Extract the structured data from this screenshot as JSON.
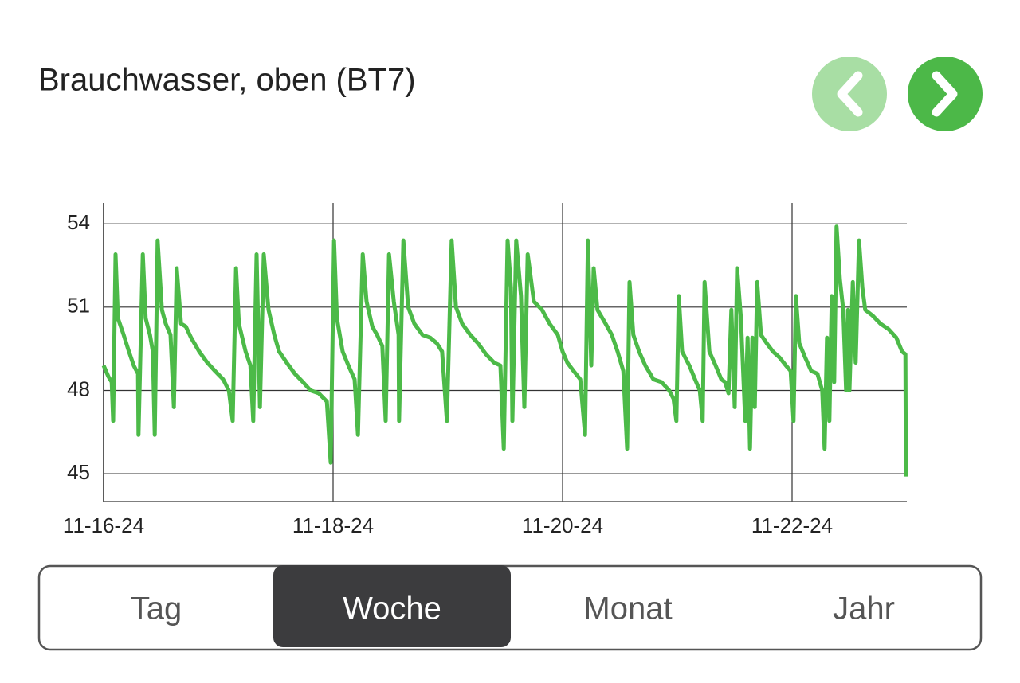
{
  "header": {
    "title": "Brauchwasser, oben (BT7)"
  },
  "chart_data": {
    "type": "line",
    "x": [
      0,
      1,
      1.7,
      2,
      2.5,
      3,
      4.2,
      5.3,
      6.3,
      7.2,
      7.3,
      8.2,
      8.8,
      9.7,
      10.3,
      10.7,
      11.3,
      12.2,
      13,
      14,
      14.7,
      15.3,
      16.2,
      17.2,
      18.3,
      20,
      21.7,
      23.3,
      25,
      26.2,
      27,
      27.7,
      28.3,
      29.7,
      30.7,
      31.3,
      32,
      32.7,
      33.5,
      34.5,
      35.7,
      36.7,
      38.3,
      40,
      41.7,
      43.3,
      45,
      46.7,
      47.5,
      48.2,
      48.8,
      50,
      51.2,
      52.5,
      53.2,
      54.2,
      55,
      56.2,
      57.2,
      58.3,
      59,
      59.7,
      60.7,
      61.7,
      61.8,
      62.7,
      63.7,
      65,
      66.7,
      68.3,
      69.7,
      70.8,
      71.8,
      72.8,
      73.7,
      75,
      76.7,
      78.3,
      80,
      81.7,
      83,
      83.7,
      84.5,
      85.2,
      85.5,
      86.3,
      87.3,
      88,
      88.7,
      90,
      91.7,
      93.3,
      95,
      96,
      97,
      98.3,
      99.7,
      100.7,
      101.3,
      102,
      102.5,
      103.3,
      105,
      106.3,
      107.5,
      108.7,
      109.5,
      110,
      110.8,
      112,
      113.3,
      115,
      116.7,
      118.3,
      119.2,
      119.8,
      120.3,
      121,
      122.5,
      123.7,
      124.7,
      125.3,
      125.7,
      126.7,
      128,
      129.2,
      130,
      130.7,
      131.3,
      132,
      132.5,
      133.3,
      134.2,
      134.7,
      135.2,
      135.7,
      136.2,
      136.7,
      137.5,
      138.7,
      140,
      141.3,
      142.7,
      143.7,
      144.3,
      144.8,
      145.5,
      146.7,
      148,
      149.3,
      150.3,
      150.8,
      151.3,
      151.8,
      152.3,
      152.8,
      153.3,
      154,
      154.7,
      155.3,
      155.7,
      156,
      156.7,
      157.3,
      158,
      158.7,
      159.3,
      160.8,
      162.5,
      164.2,
      165.8,
      167,
      167.7,
      167.8
    ],
    "series": [
      {
        "color": "#4cba48",
        "values": [
          48.9,
          48.5,
          48.3,
          46.9,
          52.9,
          50.6,
          50.0,
          49.4,
          48.9,
          48.6,
          46.4,
          52.9,
          50.6,
          50.0,
          49.4,
          46.4,
          53.4,
          50.9,
          50.4,
          50.0,
          47.4,
          52.4,
          50.4,
          50.3,
          49.9,
          49.4,
          49.0,
          48.7,
          48.4,
          48.0,
          46.9,
          52.4,
          50.4,
          49.4,
          48.9,
          46.9,
          52.9,
          47.4,
          52.9,
          50.9,
          50.0,
          49.4,
          49.0,
          48.6,
          48.3,
          48.0,
          47.9,
          47.6,
          45.4,
          53.4,
          50.6,
          49.4,
          48.9,
          48.4,
          46.4,
          52.9,
          51.2,
          50.3,
          50.0,
          49.6,
          46.9,
          52.9,
          51.2,
          50.0,
          46.9,
          53.4,
          51.0,
          50.4,
          50.0,
          49.9,
          49.7,
          49.4,
          46.9,
          53.4,
          51.0,
          50.4,
          50.0,
          49.7,
          49.3,
          49.0,
          48.9,
          45.9,
          53.4,
          51.7,
          46.9,
          53.4,
          51.4,
          47.4,
          52.9,
          51.2,
          50.9,
          50.4,
          50.0,
          49.4,
          49.0,
          48.7,
          48.4,
          46.4,
          53.4,
          48.9,
          52.4,
          50.9,
          50.4,
          50.0,
          49.4,
          48.7,
          45.9,
          51.9,
          50.0,
          49.4,
          48.9,
          48.4,
          48.3,
          48.0,
          47.7,
          46.9,
          51.4,
          49.4,
          48.9,
          48.4,
          48.0,
          46.9,
          51.9,
          49.4,
          48.9,
          48.4,
          48.3,
          47.9,
          50.9,
          47.4,
          52.4,
          50.6,
          46.9,
          49.9,
          45.9,
          49.9,
          47.4,
          51.9,
          50.0,
          49.7,
          49.4,
          49.2,
          48.9,
          48.7,
          46.9,
          51.4,
          49.7,
          49.2,
          48.7,
          48.6,
          48.0,
          45.9,
          49.9,
          46.9,
          51.4,
          48.3,
          53.9,
          52.0,
          50.9,
          48.0,
          50.9,
          48.0,
          51.9,
          49.0,
          53.4,
          51.7,
          50.9,
          50.7,
          50.4,
          50.2,
          49.9,
          49.4,
          49.3,
          44.9
        ]
      }
    ],
    "xlim": [
      0,
      168
    ],
    "xticks": [
      {
        "value": 0,
        "label": "11-16-24"
      },
      {
        "value": 48,
        "label": "11-18-24"
      },
      {
        "value": 96,
        "label": "11-20-24"
      },
      {
        "value": 144,
        "label": "11-22-24"
      }
    ],
    "ylim": [
      44,
      54.75
    ],
    "yticks": [
      45,
      48,
      51,
      54
    ],
    "grid": true
  },
  "tabs": {
    "items": [
      "Tag",
      "Woche",
      "Monat",
      "Jahr"
    ],
    "selected": 1
  }
}
